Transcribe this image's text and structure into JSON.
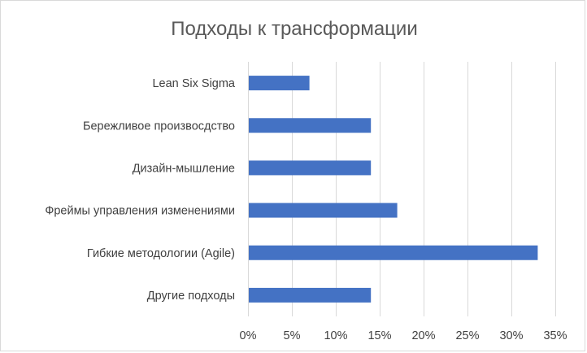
{
  "chart_data": {
    "type": "bar",
    "orientation": "horizontal",
    "title": "Подходы к трансформации",
    "categories": [
      "Lean Six Sigma",
      "Бережливое произвосдство",
      "Дизайн-мышление",
      "Фреймы управления изменениями",
      "Гибкие методологии (Agile)",
      "Другие подходы"
    ],
    "values": [
      7,
      14,
      14,
      17,
      33,
      14
    ],
    "xlim": [
      0,
      35
    ],
    "x_ticks": [
      0,
      5,
      10,
      15,
      20,
      25,
      30,
      35
    ],
    "x_tick_labels": [
      "0%",
      "5%",
      "10%",
      "15%",
      "20%",
      "25%",
      "30%",
      "35%"
    ],
    "xlabel": "",
    "ylabel": "",
    "grid": "vertical",
    "legend": "none",
    "bar_color": "#4472c4",
    "grid_color": "#d9d9d9",
    "text_color": "#404040",
    "title_color": "#595959"
  }
}
